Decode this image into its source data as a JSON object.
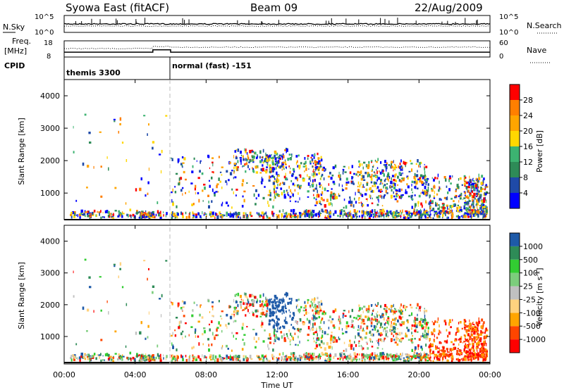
{
  "header": {
    "station": "Syowa East (fitACF)",
    "beam": "Beam 09",
    "date": "22/Aug/2009"
  },
  "panels": {
    "nsky_label": "N.Sky",
    "nsearch_label": "N.Search",
    "freq_label": "Freq.",
    "freq_unit": "[MHz]",
    "nave_label": "Nave",
    "cpid_label": "CPID",
    "cpid_segments": [
      "themis 3300",
      "normal (fast) -151"
    ]
  },
  "colors": {
    "power": [
      "#0000ff",
      "#1f4aa8",
      "#2e8b57",
      "#3cb371",
      "#ffd700",
      "#ffa500",
      "#ff7f00",
      "#ff0000"
    ],
    "velocity": [
      "#ff0000",
      "#ff4500",
      "#ffa500",
      "#ffd27f",
      "#c0c0c0",
      "#7ccd7c",
      "#32cd32",
      "#2e8b57",
      "#1e5aa8"
    ]
  },
  "chart_data": [
    {
      "type": "line",
      "name": "noise-panel",
      "ylabel_left": "N.Sky",
      "ylabel_right": "N.Search",
      "yticks_left": [
        "10^5",
        "10^0"
      ],
      "yticks_right": [
        "10^5",
        "10^0"
      ]
    },
    {
      "type": "line",
      "name": "frequency-nave-panel",
      "ylabel_left": "Freq. [MHz]",
      "ylabel_right": "Nave",
      "yticks_left": [
        "18",
        "8"
      ],
      "yticks_right": [
        "60",
        "0"
      ],
      "freq_steps": [
        {
          "from": 0,
          "to": 5,
          "value": 11
        },
        {
          "from": 5,
          "to": 6,
          "value": 12.5
        },
        {
          "from": 6,
          "to": 24,
          "value": 11
        }
      ]
    },
    {
      "type": "heatmap",
      "name": "power-panel",
      "ylabel": "Slant Range [km]",
      "yticks": [
        "4000",
        "3000",
        "2000",
        "1000"
      ],
      "ylim": [
        180,
        4500
      ],
      "colorbar_label": "Power [dB]",
      "colorbar_ticks": [
        "28",
        "24",
        "20",
        "16",
        "12",
        "8",
        "4"
      ]
    },
    {
      "type": "heatmap",
      "name": "velocity-panel",
      "ylabel": "Slant Range [km]",
      "yticks": [
        "4000",
        "3000",
        "2000",
        "1000"
      ],
      "ylim": [
        180,
        4500
      ],
      "colorbar_label": "Velocity [m s-1]",
      "colorbar_ticks": [
        "1000",
        "500",
        "100",
        "25",
        "-25",
        "-100",
        "-500",
        "-1000"
      ]
    }
  ],
  "xaxis": {
    "label": "Time UT",
    "ticks": [
      "00:00",
      "04:00",
      "08:00",
      "12:00",
      "16:00",
      "20:00",
      "00:00"
    ],
    "xlim": [
      0,
      24
    ]
  }
}
